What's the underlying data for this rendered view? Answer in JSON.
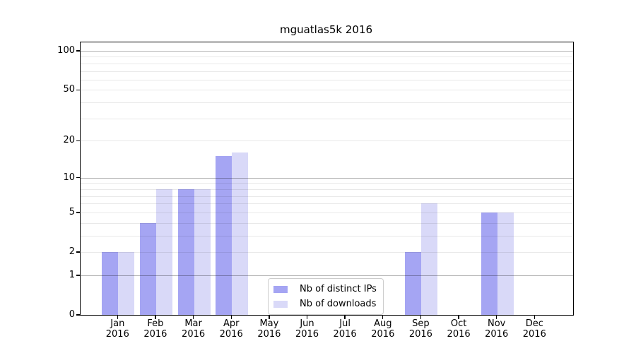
{
  "chart_data": {
    "type": "bar",
    "title": "mguatlas5k 2016",
    "categories": [
      "Jan 2016",
      "Feb 2016",
      "Mar 2016",
      "Apr 2016",
      "May 2016",
      "Jun 2016",
      "Jul 2016",
      "Aug 2016",
      "Sep 2016",
      "Oct 2016",
      "Nov 2016",
      "Dec 2016"
    ],
    "series": [
      {
        "name": "Nb of distinct IPs",
        "color": "#a5a5f3",
        "values": [
          2,
          4,
          8,
          15,
          0,
          0,
          0,
          0,
          2,
          0,
          5,
          0
        ]
      },
      {
        "name": "Nb of downloads",
        "color": "#d9d9f8",
        "values": [
          2,
          8,
          8,
          16,
          0,
          0,
          0,
          0,
          6,
          0,
          5,
          0
        ]
      }
    ],
    "xlabel": "",
    "ylabel": "",
    "yscale": "log1p",
    "ylim": [
      0,
      115
    ],
    "yticks": [
      0,
      1,
      2,
      5,
      10,
      20,
      50,
      100
    ],
    "major_gridlines": [
      1,
      10,
      100
    ],
    "minor_gridlines": [
      2,
      3,
      4,
      5,
      6,
      7,
      8,
      9,
      20,
      30,
      40,
      50,
      60,
      70,
      80,
      90
    ],
    "grid": true,
    "legend_position": "lower center"
  },
  "colors": {
    "axis": "#000000",
    "major_grid": "#b3b3b3",
    "minor_grid": "#ebebeb",
    "legend_border": "#cccccc",
    "background": "#ffffff"
  }
}
